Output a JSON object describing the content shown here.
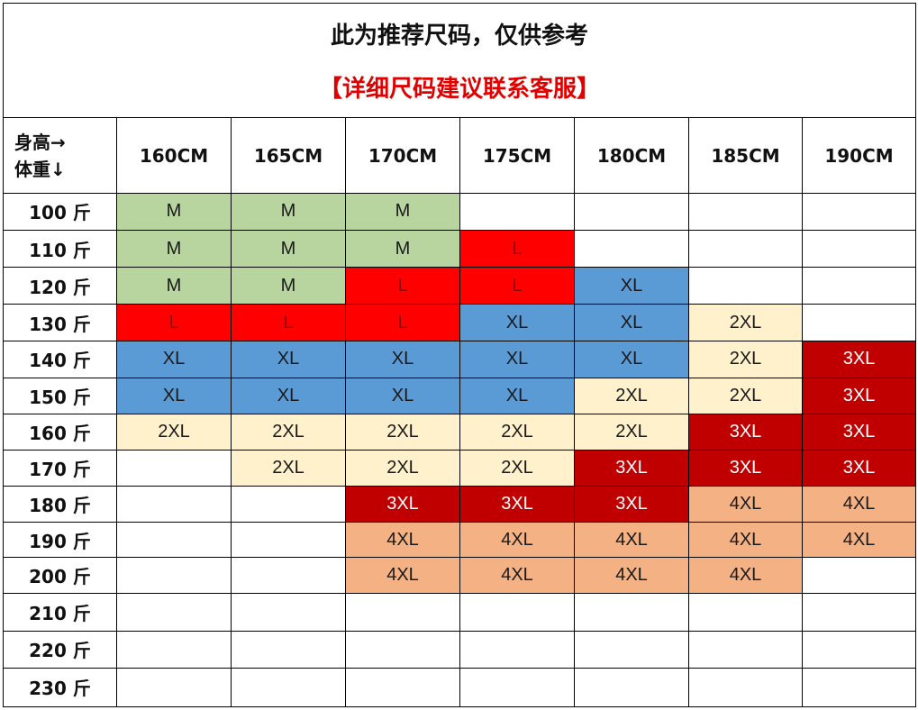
{
  "title": "此为推荐尺码，仅供参考",
  "subtitle": "【详细尺码建议联系客服】",
  "corner_label_height": "身高→",
  "corner_label_weight": "体重↓",
  "heights": [
    "160CM",
    "165CM",
    "170CM",
    "175CM",
    "180CM",
    "185CM",
    "190CM"
  ],
  "colors": {
    "M": "#b8d5a0",
    "L": "#ff0000",
    "XL": "#5b9bd5",
    "2XL": "#fff1cc",
    "3XL": "#c00000",
    "4XL": "#f4b183"
  },
  "rows": [
    {
      "weight": "100 斤",
      "sizes": [
        "M",
        "M",
        "M",
        "",
        "",
        "",
        ""
      ]
    },
    {
      "weight": "110 斤",
      "sizes": [
        "M",
        "M",
        "M",
        "L",
        "",
        "",
        ""
      ]
    },
    {
      "weight": "120 斤",
      "sizes": [
        "M",
        "M",
        "L",
        "L",
        "XL",
        "",
        ""
      ]
    },
    {
      "weight": "130 斤",
      "sizes": [
        "L",
        "L",
        "L",
        "XL",
        "XL",
        "2XL",
        ""
      ]
    },
    {
      "weight": "140 斤",
      "sizes": [
        "XL",
        "XL",
        "XL",
        "XL",
        "XL",
        "2XL",
        "3XL"
      ]
    },
    {
      "weight": "150 斤",
      "sizes": [
        "XL",
        "XL",
        "XL",
        "XL",
        "2XL",
        "2XL",
        "3XL"
      ]
    },
    {
      "weight": "160 斤",
      "sizes": [
        "2XL",
        "2XL",
        "2XL",
        "2XL",
        "2XL",
        "3XL",
        "3XL"
      ]
    },
    {
      "weight": "170 斤",
      "sizes": [
        "",
        "2XL",
        "2XL",
        "2XL",
        "3XL",
        "3XL",
        "3XL"
      ]
    },
    {
      "weight": "180 斤",
      "sizes": [
        "",
        "",
        "3XL",
        "3XL",
        "3XL",
        "4XL",
        "4XL"
      ]
    },
    {
      "weight": "190 斤",
      "sizes": [
        "",
        "",
        "4XL",
        "4XL",
        "4XL",
        "4XL",
        "4XL"
      ]
    },
    {
      "weight": "200 斤",
      "sizes": [
        "",
        "",
        "4XL",
        "4XL",
        "4XL",
        "4XL",
        ""
      ]
    },
    {
      "weight": "210 斤",
      "sizes": [
        "",
        "",
        "",
        "",
        "",
        "",
        ""
      ]
    },
    {
      "weight": "220 斤",
      "sizes": [
        "",
        "",
        "",
        "",
        "",
        "",
        ""
      ]
    },
    {
      "weight": "230 斤",
      "sizes": [
        "",
        "",
        "",
        "",
        "",
        "",
        ""
      ]
    }
  ]
}
